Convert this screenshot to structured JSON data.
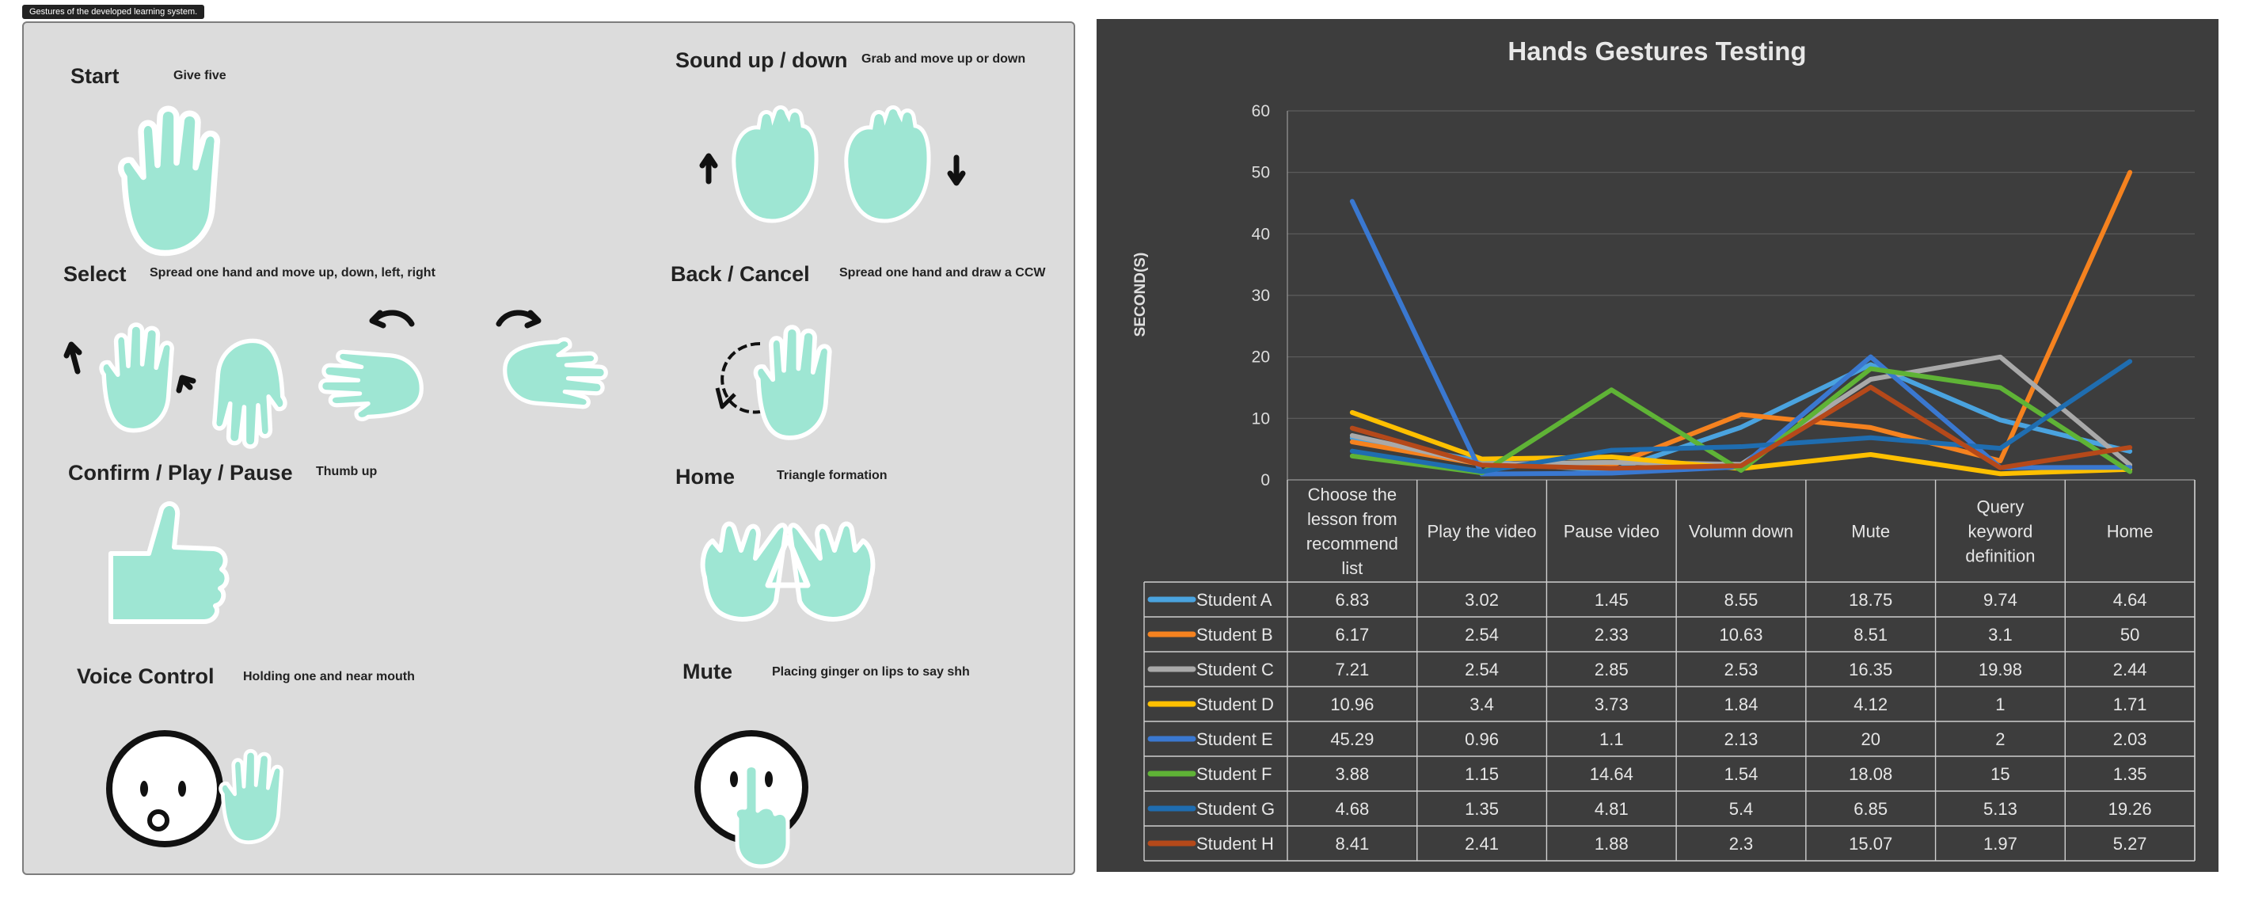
{
  "figure_caption": "Gestures of the developed learning system.",
  "accent_color": "#9ee6d3",
  "gestures": [
    {
      "title": "Start",
      "description": "Give five",
      "icon": "open-hand-icon"
    },
    {
      "title": "Sound up / down",
      "description": "Grab and move up or down",
      "icon": "grab-hand-icon"
    },
    {
      "title": "Select",
      "description": "Spread one hand and move up, down, left, right",
      "icon": "spread-hand-icon"
    },
    {
      "title": "Back / Cancel",
      "description": "Spread one hand and draw a CCW",
      "icon": "ccw-hand-icon"
    },
    {
      "title": "Confirm / Play / Pause",
      "description": "Thumb up",
      "icon": "thumb-up-icon"
    },
    {
      "title": "Home",
      "description": "Triangle formation",
      "icon": "triangle-hands-icon"
    },
    {
      "title": "Voice Control",
      "description": "Holding one and near mouth",
      "icon": "voice-face-icon"
    },
    {
      "title": "Mute",
      "description": "Placing ginger on lips to say shh",
      "icon": "shh-face-icon"
    }
  ],
  "chart_data": {
    "type": "line",
    "title": "Hands Gestures Testing",
    "ylabel": "SECOND(S)",
    "ylim": [
      0,
      60
    ],
    "yticks": [
      0,
      10,
      20,
      30,
      40,
      50,
      60
    ],
    "grid": true,
    "data_table": true,
    "categories": [
      [
        "Choose the",
        "lesson from",
        "recommend",
        "list"
      ],
      [
        "Play the video"
      ],
      [
        "Pause video"
      ],
      [
        "Volumn down"
      ],
      [
        "Mute"
      ],
      [
        "Query",
        "keyword",
        "definition"
      ],
      [
        "Home"
      ]
    ],
    "series": [
      {
        "name": "Student A",
        "color": "#4aa3df",
        "values": [
          6.83,
          3.02,
          1.45,
          8.55,
          18.75,
          9.74,
          4.64
        ],
        "labels": [
          "6.83",
          "3.02",
          "1.45",
          "8.55",
          "18.75",
          "9.74",
          "4.64"
        ]
      },
      {
        "name": "Student B",
        "color": "#f5821f",
        "values": [
          6.17,
          2.54,
          2.33,
          10.63,
          8.51,
          3.1,
          50
        ],
        "labels": [
          "6.17",
          "2.54",
          "2.33",
          "10.63",
          "8.51",
          "3.1",
          "50"
        ]
      },
      {
        "name": "Student C",
        "color": "#a9a9a9",
        "values": [
          7.21,
          2.54,
          2.85,
          2.53,
          16.35,
          19.98,
          2.44
        ],
        "labels": [
          "7.21",
          "2.54",
          "2.85",
          "2.53",
          "16.35",
          "19.98",
          "2.44"
        ]
      },
      {
        "name": "Student D",
        "color": "#ffc000",
        "values": [
          10.96,
          3.4,
          3.73,
          1.84,
          4.12,
          1,
          1.71
        ],
        "labels": [
          "10.96",
          "3.4",
          "3.73",
          "1.84",
          "4.12",
          "1",
          "1.71"
        ]
      },
      {
        "name": "Student E",
        "color": "#3a78d0",
        "values": [
          45.29,
          0.96,
          1.1,
          2.13,
          20,
          2,
          2.03
        ],
        "labels": [
          "45.29",
          "0.96",
          "1.1",
          "2.13",
          "20",
          "2",
          "2.03"
        ]
      },
      {
        "name": "Student F",
        "color": "#5fb336",
        "values": [
          3.88,
          1.15,
          14.64,
          1.54,
          18.08,
          15,
          1.35
        ],
        "labels": [
          "3.88",
          "1.15",
          "14.64",
          "1.54",
          "18.08",
          "15",
          "1.35"
        ]
      },
      {
        "name": "Student G",
        "color": "#1f6db0",
        "values": [
          4.68,
          1.35,
          4.81,
          5.4,
          6.85,
          5.13,
          19.26
        ],
        "labels": [
          "4.68",
          "1.35",
          "4.81",
          "5.4",
          "6.85",
          "5.13",
          "19.26"
        ]
      },
      {
        "name": "Student H",
        "color": "#b5491a",
        "values": [
          8.41,
          2.41,
          1.88,
          2.3,
          15.07,
          1.97,
          5.27
        ],
        "labels": [
          "8.41",
          "2.41",
          "1.88",
          "2.3",
          "15.07",
          "1.97",
          "5.27"
        ]
      }
    ]
  }
}
